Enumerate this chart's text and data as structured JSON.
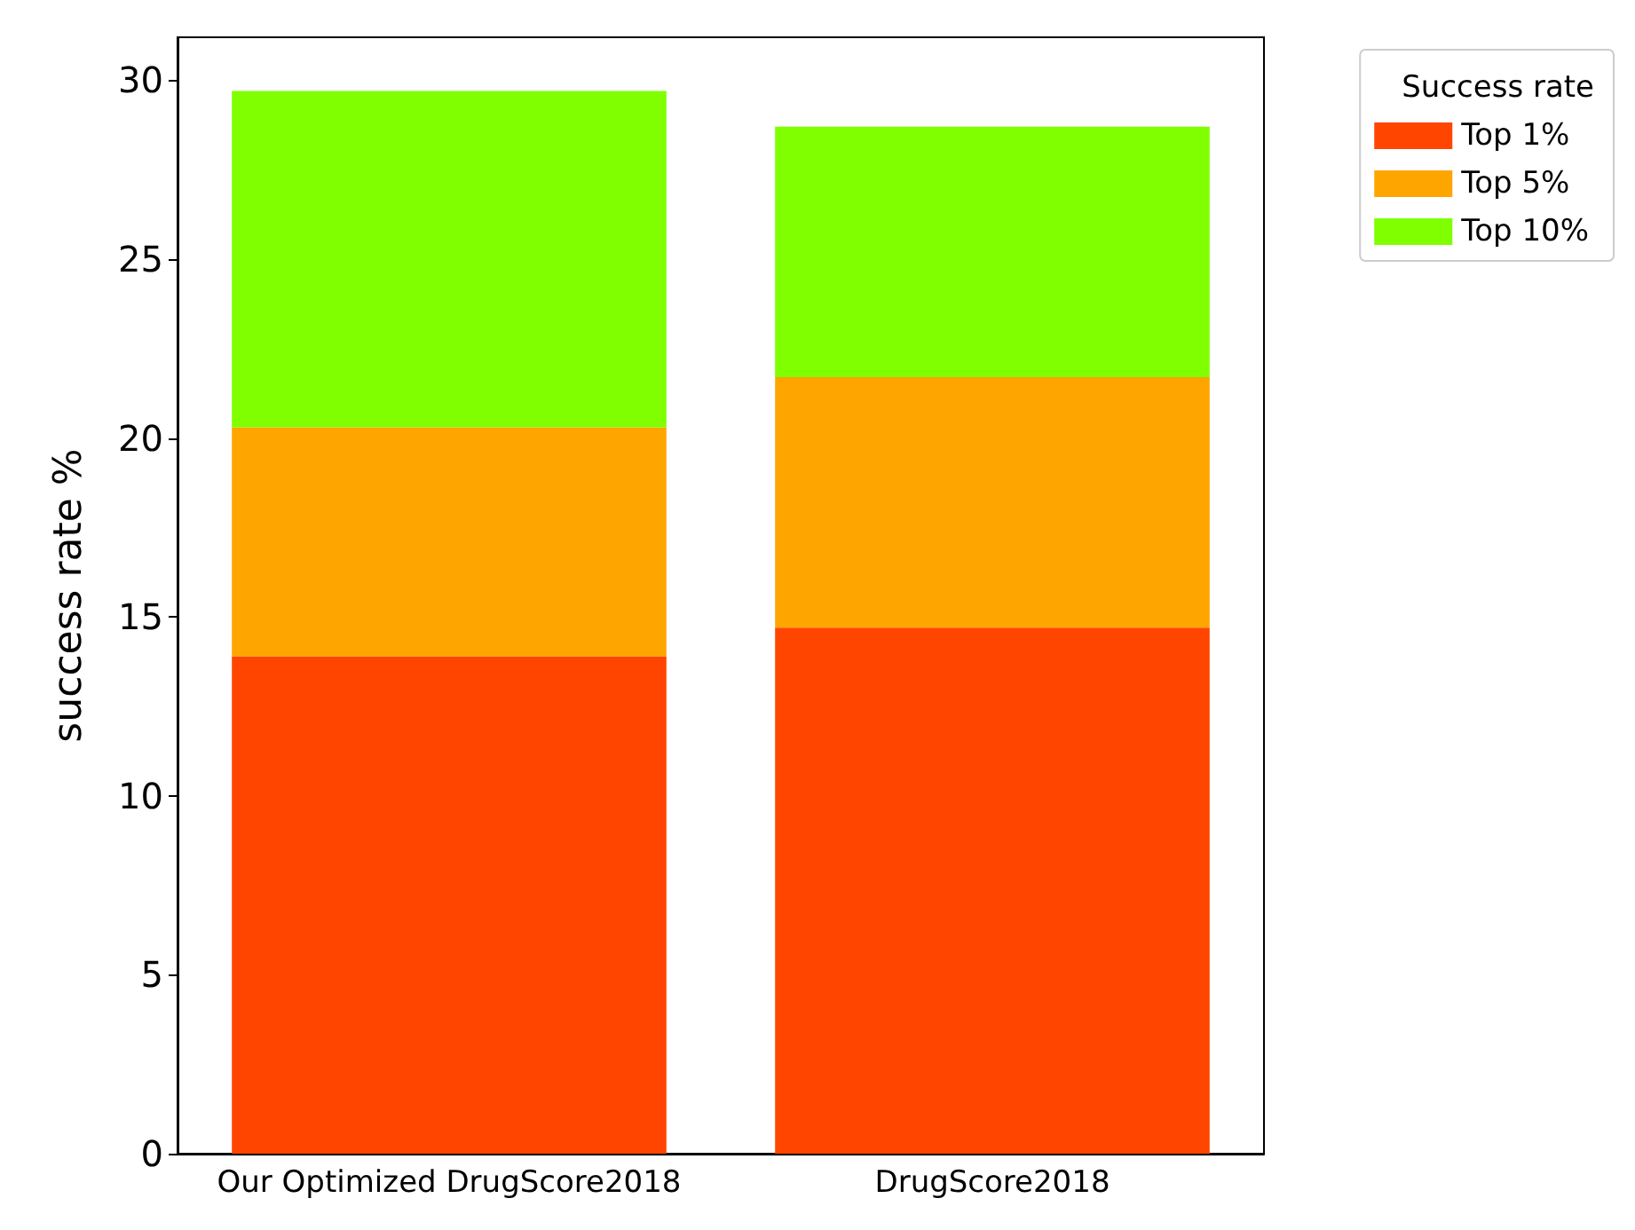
{
  "chart_data": {
    "type": "bar",
    "stacked": true,
    "ylabel": "success rate %",
    "legend_title": "Success rate",
    "legend": "top right",
    "categories": [
      "Our Optimized DrugScore2018",
      "DrugScore2018"
    ],
    "series": [
      {
        "name": "Top 1%",
        "color": "#ff4500",
        "values": [
          13.9,
          14.7
        ]
      },
      {
        "name": "Top 5%",
        "color": "#ffa500",
        "values": [
          6.4,
          7.0
        ]
      },
      {
        "name": "Top 10%",
        "color": "#7fff00",
        "values": [
          9.4,
          7.0
        ]
      }
    ],
    "ylim": [
      0,
      31.2
    ],
    "yticks": [
      0,
      5,
      10,
      15,
      20,
      25,
      30
    ],
    "grid": false
  }
}
